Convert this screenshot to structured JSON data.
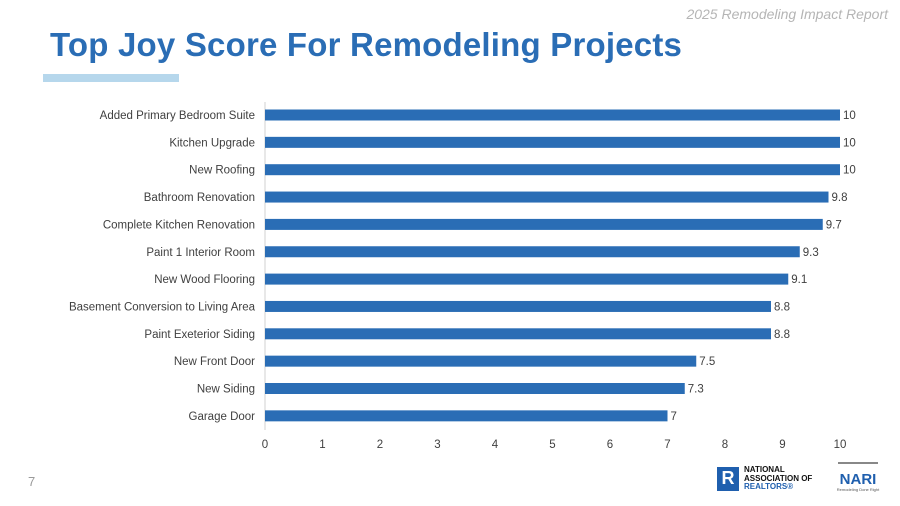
{
  "header": {
    "report_name": "2025 Remodeling Impact Report",
    "title": "Top Joy Score For Remodeling Projects"
  },
  "page_number": "7",
  "logos": {
    "nar": "NATIONAL ASSOCIATION OF REALTORS®",
    "nari": "NARI",
    "nari_tagline": "Remodeling Done Right"
  },
  "colors": {
    "bar": "#2a6db5",
    "title": "#2a6db5",
    "accent_underline": "#b6d7ec"
  },
  "chart_data": {
    "type": "bar",
    "orientation": "horizontal",
    "categories": [
      "Added Primary Bedroom Suite",
      "Kitchen Upgrade",
      "New Roofing",
      "Bathroom Renovation",
      "Complete Kitchen Renovation",
      "Paint 1 Interior Room",
      "New Wood Flooring",
      "Basement Conversion to Living Area",
      "Paint Exeterior Siding",
      "New Front Door",
      "New Siding",
      "Garage Door"
    ],
    "values": [
      10,
      10,
      10,
      9.8,
      9.7,
      9.3,
      9.1,
      8.8,
      8.8,
      7.5,
      7.3,
      7
    ],
    "data_labels": [
      "10",
      "10",
      "10",
      "9.8",
      "9.7",
      "9.3",
      "9.1",
      "8.8",
      "8.8",
      "7.5",
      "7.3",
      "7"
    ],
    "xlim": [
      0,
      10
    ],
    "xticks": [
      "0",
      "1",
      "2",
      "3",
      "4",
      "5",
      "6",
      "7",
      "8",
      "9",
      "10"
    ],
    "grid": false,
    "title": "Top Joy Score For Remodeling Projects"
  }
}
